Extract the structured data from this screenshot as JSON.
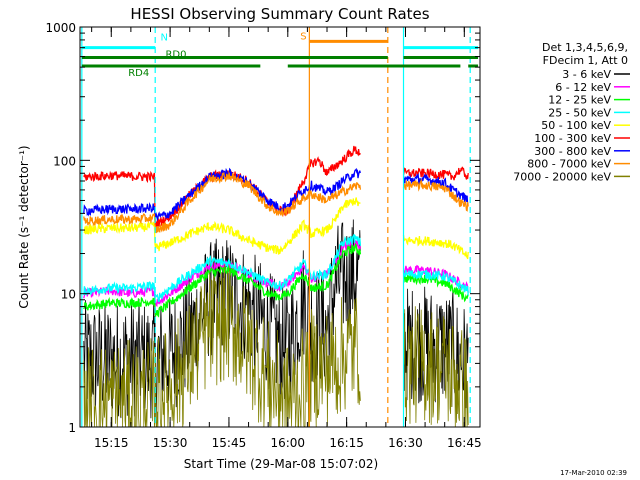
{
  "chart_data": {
    "type": "line",
    "title": "HESSI Observing Summary Count Rates",
    "xlabel": "Start Time (29-Mar-08 15:07:02)",
    "ylabel": "Count Rate (s⁻¹ detector⁻¹)",
    "x_ticks": [
      "15:15",
      "15:30",
      "15:45",
      "16:00",
      "16:15",
      "16:30",
      "16:45"
    ],
    "x_tick_minutes": [
      15,
      30,
      45,
      60,
      75,
      90,
      105
    ],
    "xlim_minutes": [
      7.03,
      109
    ],
    "y_scale": "log",
    "y_ticks": [
      "1",
      "10",
      "100",
      "1000"
    ],
    "ylim": [
      1,
      1000
    ],
    "legend_header": [
      "Det 1,3,4,5,6,9,",
      "FDecim 1, Att 0"
    ],
    "legend_position": "right",
    "data_gap_minutes": [
      78.5,
      89.5
    ],
    "series": [
      {
        "name": "3 - 6 keV",
        "color": "#000000",
        "points": [
          [
            8,
            3.2
          ],
          [
            15,
            3.2
          ],
          [
            20,
            3.3
          ],
          [
            26,
            3.2
          ],
          [
            30,
            3.5
          ],
          [
            35,
            5
          ],
          [
            40,
            9
          ],
          [
            45,
            10
          ],
          [
            50,
            8
          ],
          [
            55,
            5.5
          ],
          [
            58,
            4.2
          ],
          [
            60,
            4
          ],
          [
            64,
            9
          ],
          [
            66,
            6
          ],
          [
            70,
            5.5
          ],
          [
            72,
            12
          ],
          [
            74,
            13
          ],
          [
            77,
            14
          ],
          [
            90,
            4.2
          ],
          [
            95,
            4.2
          ],
          [
            100,
            4
          ],
          [
            102,
            3.8
          ],
          [
            104,
            3.2
          ],
          [
            106,
            3.0
          ]
        ]
      },
      {
        "name": "6 - 12 keV",
        "color": "#ff00ff",
        "points": [
          [
            8,
            10
          ],
          [
            15,
            10.5
          ],
          [
            20,
            10
          ],
          [
            26,
            10.5
          ],
          [
            26.2,
            8.5
          ],
          [
            30,
            10
          ],
          [
            35,
            13
          ],
          [
            40,
            16
          ],
          [
            45,
            16.5
          ],
          [
            50,
            14
          ],
          [
            55,
            12
          ],
          [
            58,
            11
          ],
          [
            60,
            12
          ],
          [
            64,
            16
          ],
          [
            66,
            13
          ],
          [
            70,
            14
          ],
          [
            72,
            17
          ],
          [
            74,
            22
          ],
          [
            77,
            24
          ],
          [
            90,
            15
          ],
          [
            95,
            15
          ],
          [
            100,
            14
          ],
          [
            102,
            13
          ],
          [
            104,
            12
          ],
          [
            106,
            11
          ]
        ]
      },
      {
        "name": "12 - 25 keV",
        "color": "#00ff00",
        "points": [
          [
            8,
            8
          ],
          [
            15,
            8.5
          ],
          [
            20,
            8.5
          ],
          [
            26,
            8.8
          ],
          [
            26.2,
            7
          ],
          [
            30,
            8.5
          ],
          [
            35,
            11
          ],
          [
            40,
            14.5
          ],
          [
            45,
            15
          ],
          [
            50,
            12.5
          ],
          [
            55,
            10
          ],
          [
            58,
            9.5
          ],
          [
            60,
            10
          ],
          [
            64,
            14
          ],
          [
            66,
            11
          ],
          [
            70,
            11.5
          ],
          [
            72,
            15
          ],
          [
            74,
            20
          ],
          [
            77,
            22
          ],
          [
            90,
            13
          ],
          [
            95,
            13
          ],
          [
            100,
            12
          ],
          [
            102,
            11
          ],
          [
            104,
            10
          ],
          [
            106,
            9
          ]
        ]
      },
      {
        "name": "25 - 50 keV",
        "color": "#00ffff",
        "points": [
          [
            8,
            10.5
          ],
          [
            15,
            11
          ],
          [
            20,
            11
          ],
          [
            26,
            11.5
          ],
          [
            26.2,
            9
          ],
          [
            30,
            11
          ],
          [
            35,
            14
          ],
          [
            40,
            17.5
          ],
          [
            45,
            17
          ],
          [
            50,
            14.5
          ],
          [
            55,
            12
          ],
          [
            58,
            11.5
          ],
          [
            60,
            12.5
          ],
          [
            64,
            17
          ],
          [
            66,
            13.5
          ],
          [
            70,
            14
          ],
          [
            72,
            18
          ],
          [
            74,
            24
          ],
          [
            77,
            26
          ],
          [
            90,
            14
          ],
          [
            95,
            14
          ],
          [
            100,
            13.5
          ],
          [
            102,
            12.5
          ],
          [
            104,
            11.5
          ],
          [
            106,
            10.5
          ]
        ]
      },
      {
        "name": "50 - 100 keV",
        "color": "#ffff00",
        "points": [
          [
            8,
            30
          ],
          [
            15,
            31
          ],
          [
            20,
            31
          ],
          [
            26,
            32
          ],
          [
            26.2,
            22
          ],
          [
            30,
            24
          ],
          [
            35,
            28
          ],
          [
            40,
            32
          ],
          [
            45,
            30
          ],
          [
            50,
            25
          ],
          [
            55,
            22
          ],
          [
            58,
            21
          ],
          [
            60,
            24
          ],
          [
            64,
            33
          ],
          [
            66,
            28
          ],
          [
            70,
            30
          ],
          [
            72,
            35
          ],
          [
            74,
            45
          ],
          [
            77,
            50
          ],
          [
            90,
            25
          ],
          [
            95,
            25
          ],
          [
            100,
            24
          ],
          [
            102,
            23
          ],
          [
            104,
            21
          ],
          [
            106,
            19
          ]
        ]
      },
      {
        "name": "100 - 300 keV",
        "color": "#ff0000",
        "points": [
          [
            8,
            75
          ],
          [
            15,
            77
          ],
          [
            20,
            76
          ],
          [
            26,
            75
          ],
          [
            26.2,
            33
          ],
          [
            30,
            38
          ],
          [
            35,
            55
          ],
          [
            40,
            75
          ],
          [
            45,
            80
          ],
          [
            50,
            70
          ],
          [
            55,
            48
          ],
          [
            58,
            42
          ],
          [
            60,
            42
          ],
          [
            64,
            70
          ],
          [
            66,
            95
          ],
          [
            68,
            100
          ],
          [
            70,
            80
          ],
          [
            72,
            90
          ],
          [
            74,
            100
          ],
          [
            77,
            120
          ],
          [
            90,
            80
          ],
          [
            95,
            80
          ],
          [
            100,
            78
          ],
          [
            102,
            75
          ],
          [
            104,
            85
          ],
          [
            106,
            75
          ]
        ]
      },
      {
        "name": "300 - 800 keV",
        "color": "#0000ff",
        "points": [
          [
            8,
            42
          ],
          [
            15,
            43
          ],
          [
            20,
            43
          ],
          [
            26,
            44
          ],
          [
            26.2,
            37
          ],
          [
            30,
            40
          ],
          [
            35,
            55
          ],
          [
            40,
            75
          ],
          [
            45,
            80
          ],
          [
            50,
            68
          ],
          [
            55,
            50
          ],
          [
            58,
            44
          ],
          [
            60,
            46
          ],
          [
            64,
            60
          ],
          [
            66,
            65
          ],
          [
            70,
            58
          ],
          [
            72,
            62
          ],
          [
            74,
            70
          ],
          [
            77,
            80
          ],
          [
            90,
            72
          ],
          [
            95,
            72
          ],
          [
            100,
            68
          ],
          [
            102,
            60
          ],
          [
            104,
            55
          ],
          [
            106,
            50
          ]
        ]
      },
      {
        "name": "800 - 7000 keV",
        "color": "#ff8c00",
        "points": [
          [
            8,
            35
          ],
          [
            15,
            36
          ],
          [
            20,
            36
          ],
          [
            26,
            37
          ],
          [
            26.2,
            30
          ],
          [
            30,
            33
          ],
          [
            35,
            50
          ],
          [
            40,
            72
          ],
          [
            45,
            77
          ],
          [
            50,
            65
          ],
          [
            55,
            45
          ],
          [
            58,
            40
          ],
          [
            60,
            42
          ],
          [
            64,
            52
          ],
          [
            66,
            56
          ],
          [
            70,
            50
          ],
          [
            72,
            54
          ],
          [
            74,
            58
          ],
          [
            77,
            64
          ],
          [
            90,
            65
          ],
          [
            95,
            65
          ],
          [
            100,
            62
          ],
          [
            102,
            55
          ],
          [
            104,
            48
          ],
          [
            106,
            45
          ]
        ]
      },
      {
        "name": "7000 - 20000 keV",
        "color": "#808000",
        "points": [
          [
            8,
            1.5
          ],
          [
            15,
            1.6
          ],
          [
            20,
            1.6
          ],
          [
            26,
            1.7
          ],
          [
            30,
            2
          ],
          [
            35,
            3.2
          ],
          [
            40,
            5.5
          ],
          [
            45,
            6
          ],
          [
            50,
            4
          ],
          [
            55,
            2.3
          ],
          [
            58,
            1.8
          ],
          [
            60,
            1.5
          ],
          [
            64,
            2
          ],
          [
            66,
            2.8
          ],
          [
            70,
            2.8
          ],
          [
            72,
            3
          ],
          [
            74,
            3.5
          ],
          [
            77,
            4
          ],
          [
            90,
            2.9
          ],
          [
            95,
            2.9
          ],
          [
            100,
            2.8
          ],
          [
            102,
            2.5
          ],
          [
            104,
            2.1
          ],
          [
            106,
            1.8
          ]
        ]
      }
    ],
    "vertical_markers": [
      {
        "label": "",
        "minute": 7.5,
        "color": "#00ffff",
        "style": "solid"
      },
      {
        "label": "",
        "minute": 26.2,
        "color": "#00ffff",
        "style": "dashed"
      },
      {
        "label": "",
        "minute": 65.5,
        "color": "#ff8c00",
        "style": "solid"
      },
      {
        "label": "",
        "minute": 85.5,
        "color": "#ff8c00",
        "style": "dashed"
      },
      {
        "label": "",
        "minute": 89.5,
        "color": "#00ffff",
        "style": "solid"
      },
      {
        "label": "",
        "minute": 106.5,
        "color": "#00ffff",
        "style": "dashed"
      }
    ],
    "status_bars": [
      {
        "label": "N",
        "color": "#00ffff",
        "y": 700,
        "segments": [
          [
            7.5,
            26.2
          ],
          [
            89.5,
            108.5
          ]
        ]
      },
      {
        "label": "S",
        "color": "#ff8c00",
        "y": 780,
        "segments": [
          [
            65.5,
            85.5
          ]
        ]
      },
      {
        "label": "RD0",
        "color": "#008000",
        "y": 590,
        "segments": [
          [
            7.5,
            85.5
          ],
          [
            89.5,
            108.5
          ]
        ]
      },
      {
        "label": "RD4",
        "color": "#008000",
        "y": 510,
        "segments": [
          [
            7.5,
            53
          ],
          [
            60,
            104
          ],
          [
            106,
            108.5
          ]
        ]
      }
    ]
  },
  "footer": {
    "timestamp": "17-Mar-2010 02:39"
  }
}
